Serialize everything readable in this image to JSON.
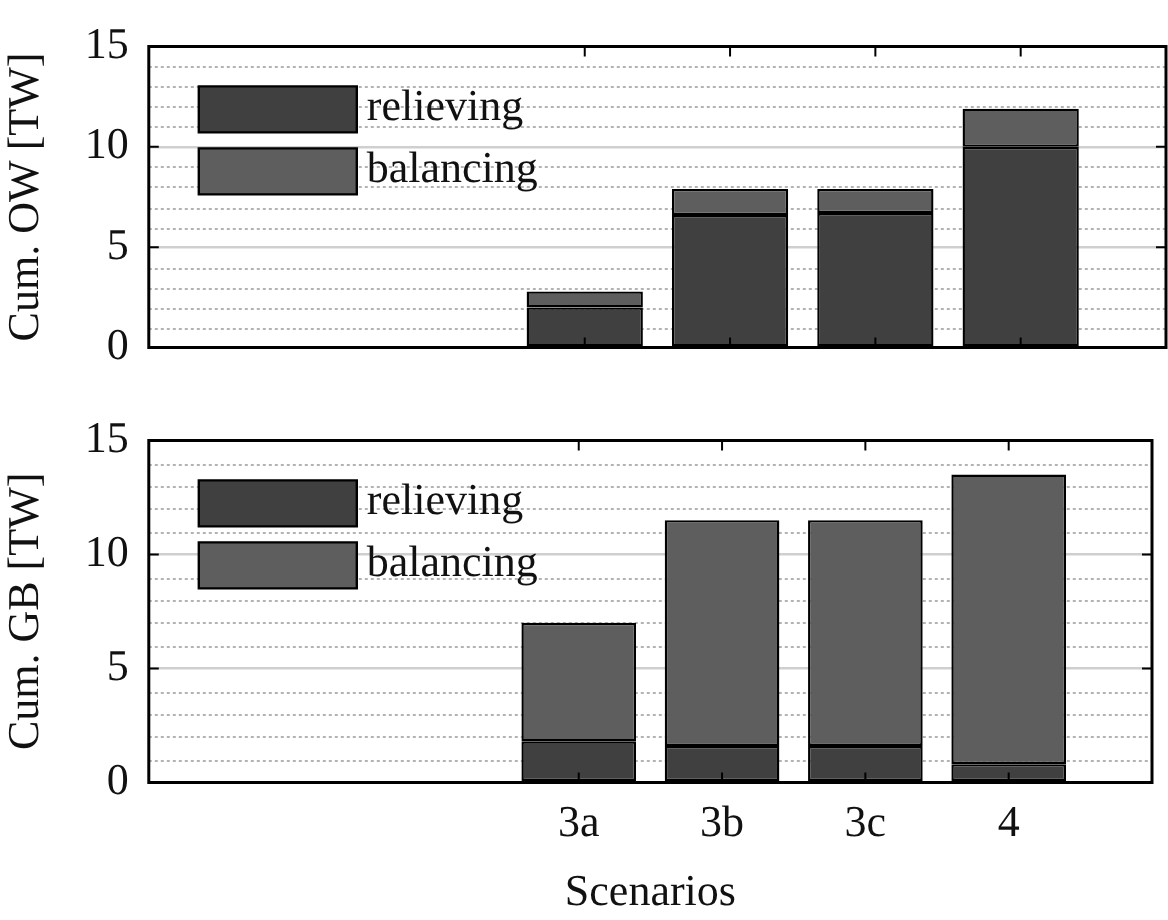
{
  "chart_data": [
    {
      "type": "bar",
      "stacked": true,
      "ylabel": "Cum. OW [TW]",
      "categories": [
        null,
        null,
        null,
        null,
        null,
        null,
        null,
        null
      ],
      "ylim": [
        0,
        15
      ],
      "yticks": [
        0,
        5,
        10,
        15
      ],
      "grid": true,
      "legend": "top left",
      "tick_labels": "y",
      "series": [
        {
          "name": "relieving",
          "color": "#404040",
          "values": [
            null,
            null,
            null,
            2.0,
            6.6,
            6.7,
            10.0,
            null
          ]
        },
        {
          "name": "balancing",
          "color": "#5e5e5e",
          "values": [
            null,
            null,
            null,
            0.8,
            1.3,
            1.2,
            1.9,
            null
          ]
        }
      ]
    },
    {
      "type": "bar",
      "stacked": true,
      "ylabel": "Cum. GB [TW]",
      "xlabel": "Scenarios",
      "categories": [
        null,
        null,
        null,
        "3a",
        "3b",
        "3c",
        "4",
        null
      ],
      "ylim": [
        0,
        15
      ],
      "yticks": [
        0,
        5,
        10,
        15
      ],
      "grid": true,
      "legend": "top left",
      "series": [
        {
          "name": "relieving",
          "color": "#404040",
          "values": [
            null,
            null,
            null,
            1.8,
            1.6,
            1.6,
            0.8,
            null
          ]
        },
        {
          "name": "balancing",
          "color": "#5e5e5e",
          "values": [
            null,
            null,
            null,
            5.2,
            9.9,
            9.9,
            12.7,
            null
          ]
        }
      ]
    }
  ]
}
